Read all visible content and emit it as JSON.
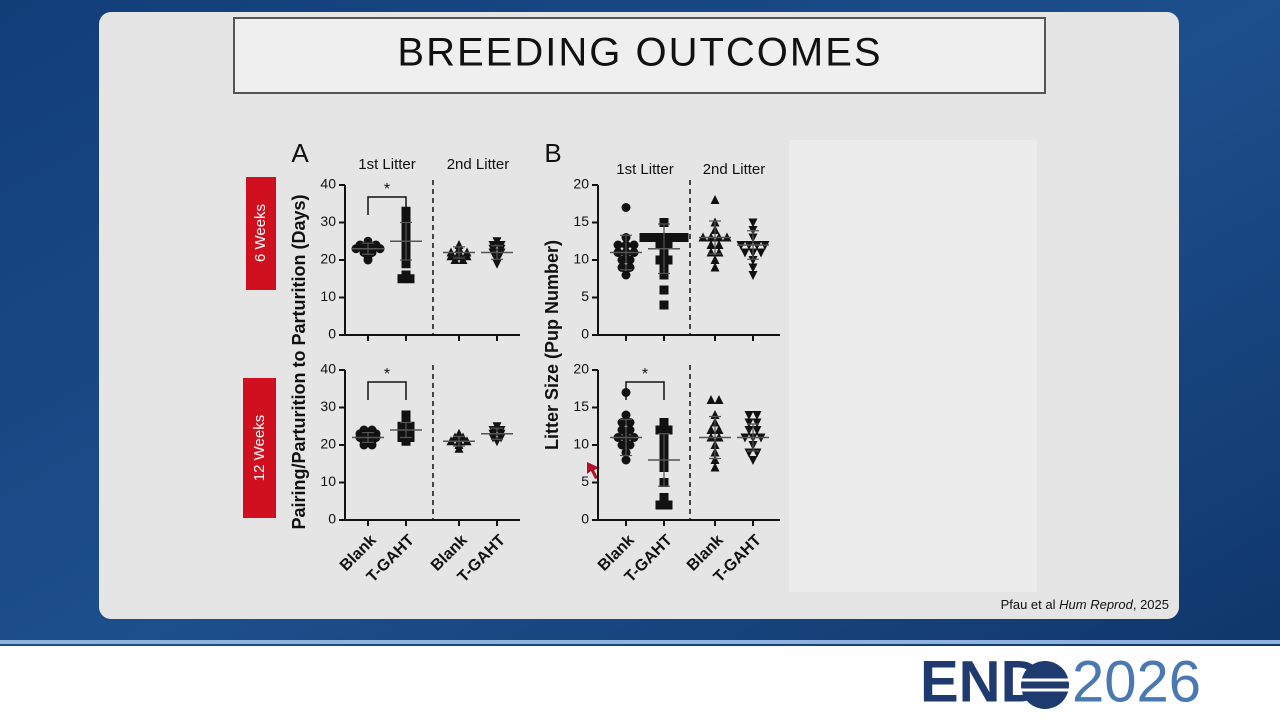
{
  "slide": {
    "title": "BREEDING OUTCOMES",
    "rows": [
      "6 Weeks",
      "12 Weeks"
    ],
    "citation": {
      "authors": "Pfau et al",
      "journal": "Hum Reprod",
      "suffix": ", 2025"
    },
    "logo": {
      "left": "END",
      "right": "2026"
    }
  },
  "chart_data": [
    {
      "type": "scatter",
      "panel": "A",
      "ylabel": "Pairing/Parturition to Parturition (Days)",
      "litter_labels": [
        "1st Litter",
        "2nd Litter"
      ],
      "significance": "*",
      "markers": [
        "circle",
        "square",
        "triangle",
        "triangle-down"
      ],
      "color": "#111111",
      "ylim": [
        0,
        40
      ],
      "yticks": [
        0,
        10,
        20,
        30,
        40
      ],
      "values": [
        [
          23,
          24,
          22,
          25,
          23,
          24,
          21,
          20,
          23,
          22,
          24,
          23
        ],
        [
          33,
          31,
          28,
          27,
          26,
          25,
          24,
          23,
          22,
          20,
          19,
          16,
          15,
          15,
          29,
          21
        ],
        [
          24,
          22,
          21,
          21,
          20,
          22,
          23,
          21,
          20,
          22
        ],
        [
          25,
          24,
          23,
          22,
          22,
          21,
          20,
          19,
          23,
          24
        ]
      ],
      "means": [
        23,
        25,
        22,
        22
      ],
      "sds": [
        1.5,
        5,
        1.5,
        1.8
      ]
    },
    {
      "type": "scatter",
      "significance": "*",
      "categories": [
        "Blank",
        "T-GAHT",
        "Blank",
        "T-GAHT"
      ],
      "markers": [
        "circle",
        "square",
        "triangle",
        "triangle-down"
      ],
      "color": "#111111",
      "ylim": [
        0,
        40
      ],
      "yticks": [
        0,
        10,
        20,
        30,
        40
      ],
      "values": [
        [
          24,
          23,
          22,
          22,
          21,
          20,
          23,
          24,
          22,
          21,
          23,
          20
        ],
        [
          28,
          27,
          25,
          24,
          23,
          22,
          22,
          21,
          25,
          26,
          24,
          23
        ],
        [
          23,
          22,
          21,
          20,
          19,
          21,
          22,
          21
        ],
        [
          25,
          24,
          23,
          22,
          21,
          22,
          23,
          24
        ]
      ],
      "means": [
        22,
        24,
        21,
        23
      ],
      "sds": [
        1.3,
        2,
        1.3,
        1.5
      ]
    },
    {
      "type": "scatter",
      "panel": "B",
      "ylabel": "Litter Size (Pup Number)",
      "litter_labels": [
        "1st Litter",
        "2nd Litter"
      ],
      "markers": [
        "circle",
        "square",
        "triangle",
        "triangle-down"
      ],
      "color": "#111111",
      "ylim": [
        0,
        20
      ],
      "yticks": [
        0,
        5,
        10,
        15,
        20
      ],
      "values": [
        [
          17,
          13,
          12,
          12,
          11,
          11,
          10,
          10,
          9,
          9,
          8,
          12,
          11
        ],
        [
          15,
          13,
          13,
          13,
          13,
          13,
          12,
          12,
          11,
          10,
          10,
          9,
          8,
          6,
          4,
          13
        ],
        [
          18,
          15,
          14,
          13,
          13,
          13,
          13,
          12,
          12,
          11,
          11,
          10,
          9
        ],
        [
          15,
          14,
          13,
          12,
          12,
          12,
          12,
          11,
          11,
          11,
          10,
          9,
          8
        ]
      ],
      "means": [
        11,
        11.5,
        13,
        12
      ],
      "sds": [
        2.3,
        3.3,
        2.2,
        1.9
      ]
    },
    {
      "type": "scatter",
      "significance": "*",
      "categories": [
        "Blank",
        "T-GAHT",
        "Blank",
        "T-GAHT"
      ],
      "markers": [
        "circle",
        "square",
        "triangle",
        "triangle-down"
      ],
      "color": "#111111",
      "ylim": [
        0,
        20
      ],
      "yticks": [
        0,
        5,
        10,
        15,
        20
      ],
      "values": [
        [
          17,
          14,
          13,
          13,
          12,
          12,
          11,
          11,
          11,
          10,
          10,
          9,
          8
        ],
        [
          13,
          12,
          12,
          11,
          10,
          9,
          8,
          7,
          5,
          3,
          2,
          2
        ],
        [
          16,
          16,
          14,
          13,
          12,
          12,
          11,
          11,
          10,
          9,
          8,
          7
        ],
        [
          14,
          14,
          13,
          13,
          12,
          12,
          11,
          11,
          11,
          10,
          9,
          9,
          8
        ]
      ],
      "means": [
        11,
        8,
        11,
        11
      ],
      "sds": [
        2.4,
        3.5,
        2.8,
        1.8
      ]
    }
  ]
}
